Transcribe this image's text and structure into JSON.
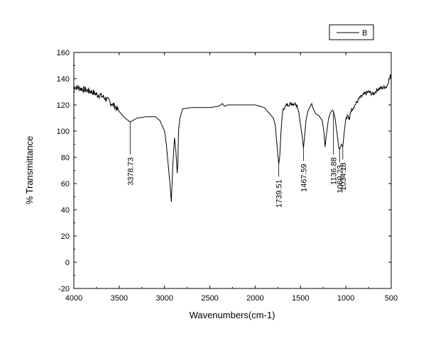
{
  "chart_data": {
    "type": "line",
    "xlabel": "Wavenumbers(cm-1)",
    "ylabel": "% Transmittance",
    "xlim": [
      4000,
      500
    ],
    "ylim": [
      -20,
      160
    ],
    "x_reversed": true,
    "x_ticks": [
      4000,
      3500,
      3000,
      2500,
      2000,
      1500,
      1000,
      500
    ],
    "y_ticks": [
      -20,
      0,
      20,
      40,
      60,
      80,
      100,
      120,
      140,
      160
    ],
    "grid": false,
    "legend_position": "top-right",
    "series": [
      {
        "name": "B",
        "color": "#000000",
        "x": [
          4000,
          3950,
          3900,
          3850,
          3800,
          3750,
          3700,
          3650,
          3600,
          3550,
          3500,
          3450,
          3400,
          3379,
          3300,
          3200,
          3100,
          3050,
          3000,
          2980,
          2960,
          2940,
          2925,
          2910,
          2890,
          2875,
          2860,
          2853,
          2845,
          2830,
          2800,
          2700,
          2600,
          2500,
          2400,
          2360,
          2340,
          2300,
          2200,
          2100,
          2000,
          1900,
          1850,
          1800,
          1780,
          1760,
          1748,
          1740,
          1730,
          1715,
          1700,
          1680,
          1650,
          1600,
          1560,
          1540,
          1520,
          1500,
          1480,
          1468,
          1455,
          1440,
          1420,
          1400,
          1377,
          1360,
          1330,
          1300,
          1280,
          1260,
          1240,
          1230,
          1210,
          1190,
          1170,
          1150,
          1137,
          1120,
          1100,
          1080,
          1069,
          1050,
          1034,
          1020,
          1000,
          980,
          960,
          950,
          900,
          850,
          800,
          750,
          700,
          650,
          600,
          550,
          530,
          520,
          510,
          500
        ],
        "y": [
          134,
          133,
          132,
          131,
          130,
          128,
          127,
          125,
          122,
          119,
          115,
          111,
          108,
          107,
          110,
          111,
          111,
          108,
          100,
          90,
          75,
          60,
          46,
          72,
          95,
          85,
          68,
          75,
          100,
          110,
          117,
          118,
          118,
          118,
          119,
          121,
          119,
          120,
          120,
          120,
          120,
          118,
          114,
          110,
          105,
          90,
          80,
          75,
          80,
          100,
          114,
          118,
          120,
          121,
          121,
          120,
          115,
          105,
          95,
          87,
          96,
          108,
          115,
          118,
          121,
          117,
          113,
          112,
          110,
          108,
          98,
          88,
          100,
          110,
          114,
          116,
          115,
          110,
          100,
          88,
          86,
          90,
          88,
          98,
          110,
          112,
          108,
          115,
          120,
          125,
          128,
          130,
          128,
          132,
          133,
          134,
          138,
          140,
          142,
          142
        ]
      }
    ],
    "annotations": [
      {
        "label": "3378.73",
        "x": 3379,
        "y": 107
      },
      {
        "label": "1739.51",
        "x": 1740,
        "y": 75
      },
      {
        "label": "1467.59",
        "x": 1468,
        "y": 87
      },
      {
        "label": "1136.88",
        "x": 1137,
        "y": 115
      },
      {
        "label": "1069.23",
        "x": 1069,
        "y": 86
      },
      {
        "label": "1034.18",
        "x": 1034,
        "y": 88
      }
    ]
  }
}
